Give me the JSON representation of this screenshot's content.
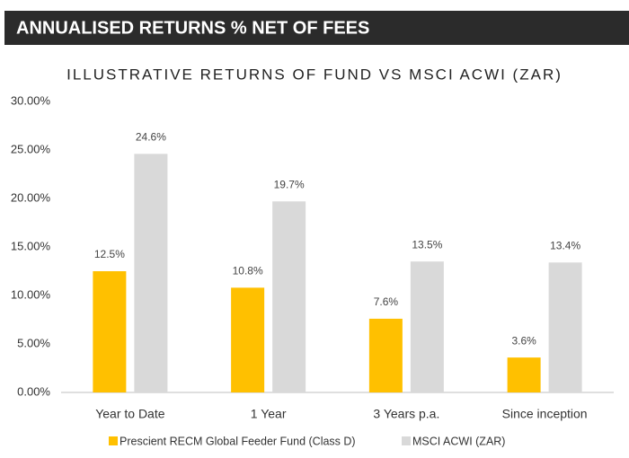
{
  "header": {
    "title": "ANNUALISED RETURNS % NET OF FEES"
  },
  "chart_data": {
    "type": "bar",
    "title": "ILLUSTRATIVE RETURNS OF FUND VS MSCI ACWI (ZAR)",
    "categories": [
      "Year to Date",
      "1 Year",
      "3 Years p.a.",
      "Since inception"
    ],
    "series": [
      {
        "name": "Prescient RECM Global Feeder Fund (Class D)",
        "color": "#ffc000",
        "values": [
          12.5,
          10.8,
          7.6,
          3.6
        ],
        "value_labels": [
          "12.5%",
          "10.8%",
          "7.6%",
          "3.6%"
        ]
      },
      {
        "name": "MSCI ACWI (ZAR)",
        "color": "#d9d9d9",
        "values": [
          24.6,
          19.7,
          13.5,
          13.4
        ],
        "value_labels": [
          "24.6%",
          "19.7%",
          "13.5%",
          "13.4%"
        ]
      }
    ],
    "ylim": [
      0,
      30
    ],
    "yticks": [
      {
        "value": 0,
        "label": "0.00%"
      },
      {
        "value": 5,
        "label": "5.00%"
      },
      {
        "value": 10,
        "label": "10.00%"
      },
      {
        "value": 15,
        "label": "15.00%"
      },
      {
        "value": 20,
        "label": "20.00%"
      },
      {
        "value": 25,
        "label": "25.00%"
      },
      {
        "value": 30,
        "label": "30.00%"
      }
    ],
    "grid": false,
    "legend": "bottom"
  }
}
